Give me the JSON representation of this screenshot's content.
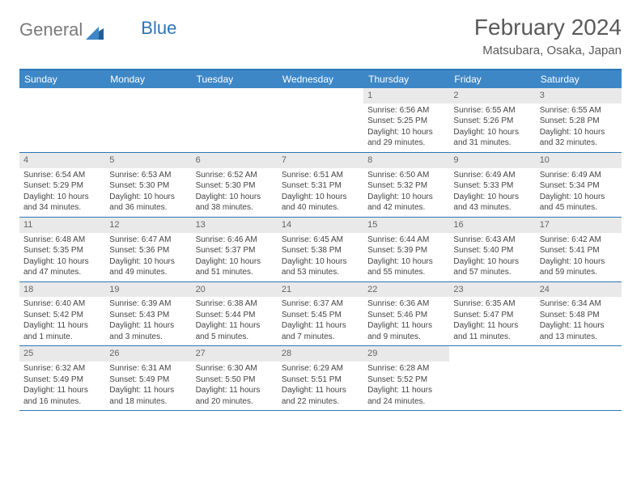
{
  "brand": {
    "part1": "General",
    "part2": "Blue"
  },
  "header": {
    "month_title": "February 2024",
    "location": "Matsubara, Osaka, Japan"
  },
  "colors": {
    "header_bar": "#3d87c7",
    "header_border_top": "#2b76b8",
    "week_border": "#2b76b8",
    "daynum_bg": "#e9e9e9",
    "text": "#444444",
    "title_text": "#5a5a5a",
    "logo_gray": "#7a7a7a",
    "logo_blue": "#2b76b8",
    "background": "#ffffff"
  },
  "weekdays": [
    "Sunday",
    "Monday",
    "Tuesday",
    "Wednesday",
    "Thursday",
    "Friday",
    "Saturday"
  ],
  "weeks": [
    [
      {
        "day": "",
        "sunrise": "",
        "sunset": "",
        "daylight": ""
      },
      {
        "day": "",
        "sunrise": "",
        "sunset": "",
        "daylight": ""
      },
      {
        "day": "",
        "sunrise": "",
        "sunset": "",
        "daylight": ""
      },
      {
        "day": "",
        "sunrise": "",
        "sunset": "",
        "daylight": ""
      },
      {
        "day": "1",
        "sunrise": "Sunrise: 6:56 AM",
        "sunset": "Sunset: 5:25 PM",
        "daylight": "Daylight: 10 hours and 29 minutes."
      },
      {
        "day": "2",
        "sunrise": "Sunrise: 6:55 AM",
        "sunset": "Sunset: 5:26 PM",
        "daylight": "Daylight: 10 hours and 31 minutes."
      },
      {
        "day": "3",
        "sunrise": "Sunrise: 6:55 AM",
        "sunset": "Sunset: 5:28 PM",
        "daylight": "Daylight: 10 hours and 32 minutes."
      }
    ],
    [
      {
        "day": "4",
        "sunrise": "Sunrise: 6:54 AM",
        "sunset": "Sunset: 5:29 PM",
        "daylight": "Daylight: 10 hours and 34 minutes."
      },
      {
        "day": "5",
        "sunrise": "Sunrise: 6:53 AM",
        "sunset": "Sunset: 5:30 PM",
        "daylight": "Daylight: 10 hours and 36 minutes."
      },
      {
        "day": "6",
        "sunrise": "Sunrise: 6:52 AM",
        "sunset": "Sunset: 5:30 PM",
        "daylight": "Daylight: 10 hours and 38 minutes."
      },
      {
        "day": "7",
        "sunrise": "Sunrise: 6:51 AM",
        "sunset": "Sunset: 5:31 PM",
        "daylight": "Daylight: 10 hours and 40 minutes."
      },
      {
        "day": "8",
        "sunrise": "Sunrise: 6:50 AM",
        "sunset": "Sunset: 5:32 PM",
        "daylight": "Daylight: 10 hours and 42 minutes."
      },
      {
        "day": "9",
        "sunrise": "Sunrise: 6:49 AM",
        "sunset": "Sunset: 5:33 PM",
        "daylight": "Daylight: 10 hours and 43 minutes."
      },
      {
        "day": "10",
        "sunrise": "Sunrise: 6:49 AM",
        "sunset": "Sunset: 5:34 PM",
        "daylight": "Daylight: 10 hours and 45 minutes."
      }
    ],
    [
      {
        "day": "11",
        "sunrise": "Sunrise: 6:48 AM",
        "sunset": "Sunset: 5:35 PM",
        "daylight": "Daylight: 10 hours and 47 minutes."
      },
      {
        "day": "12",
        "sunrise": "Sunrise: 6:47 AM",
        "sunset": "Sunset: 5:36 PM",
        "daylight": "Daylight: 10 hours and 49 minutes."
      },
      {
        "day": "13",
        "sunrise": "Sunrise: 6:46 AM",
        "sunset": "Sunset: 5:37 PM",
        "daylight": "Daylight: 10 hours and 51 minutes."
      },
      {
        "day": "14",
        "sunrise": "Sunrise: 6:45 AM",
        "sunset": "Sunset: 5:38 PM",
        "daylight": "Daylight: 10 hours and 53 minutes."
      },
      {
        "day": "15",
        "sunrise": "Sunrise: 6:44 AM",
        "sunset": "Sunset: 5:39 PM",
        "daylight": "Daylight: 10 hours and 55 minutes."
      },
      {
        "day": "16",
        "sunrise": "Sunrise: 6:43 AM",
        "sunset": "Sunset: 5:40 PM",
        "daylight": "Daylight: 10 hours and 57 minutes."
      },
      {
        "day": "17",
        "sunrise": "Sunrise: 6:42 AM",
        "sunset": "Sunset: 5:41 PM",
        "daylight": "Daylight: 10 hours and 59 minutes."
      }
    ],
    [
      {
        "day": "18",
        "sunrise": "Sunrise: 6:40 AM",
        "sunset": "Sunset: 5:42 PM",
        "daylight": "Daylight: 11 hours and 1 minute."
      },
      {
        "day": "19",
        "sunrise": "Sunrise: 6:39 AM",
        "sunset": "Sunset: 5:43 PM",
        "daylight": "Daylight: 11 hours and 3 minutes."
      },
      {
        "day": "20",
        "sunrise": "Sunrise: 6:38 AM",
        "sunset": "Sunset: 5:44 PM",
        "daylight": "Daylight: 11 hours and 5 minutes."
      },
      {
        "day": "21",
        "sunrise": "Sunrise: 6:37 AM",
        "sunset": "Sunset: 5:45 PM",
        "daylight": "Daylight: 11 hours and 7 minutes."
      },
      {
        "day": "22",
        "sunrise": "Sunrise: 6:36 AM",
        "sunset": "Sunset: 5:46 PM",
        "daylight": "Daylight: 11 hours and 9 minutes."
      },
      {
        "day": "23",
        "sunrise": "Sunrise: 6:35 AM",
        "sunset": "Sunset: 5:47 PM",
        "daylight": "Daylight: 11 hours and 11 minutes."
      },
      {
        "day": "24",
        "sunrise": "Sunrise: 6:34 AM",
        "sunset": "Sunset: 5:48 PM",
        "daylight": "Daylight: 11 hours and 13 minutes."
      }
    ],
    [
      {
        "day": "25",
        "sunrise": "Sunrise: 6:32 AM",
        "sunset": "Sunset: 5:49 PM",
        "daylight": "Daylight: 11 hours and 16 minutes."
      },
      {
        "day": "26",
        "sunrise": "Sunrise: 6:31 AM",
        "sunset": "Sunset: 5:49 PM",
        "daylight": "Daylight: 11 hours and 18 minutes."
      },
      {
        "day": "27",
        "sunrise": "Sunrise: 6:30 AM",
        "sunset": "Sunset: 5:50 PM",
        "daylight": "Daylight: 11 hours and 20 minutes."
      },
      {
        "day": "28",
        "sunrise": "Sunrise: 6:29 AM",
        "sunset": "Sunset: 5:51 PM",
        "daylight": "Daylight: 11 hours and 22 minutes."
      },
      {
        "day": "29",
        "sunrise": "Sunrise: 6:28 AM",
        "sunset": "Sunset: 5:52 PM",
        "daylight": "Daylight: 11 hours and 24 minutes."
      },
      {
        "day": "",
        "sunrise": "",
        "sunset": "",
        "daylight": ""
      },
      {
        "day": "",
        "sunrise": "",
        "sunset": "",
        "daylight": ""
      }
    ]
  ]
}
